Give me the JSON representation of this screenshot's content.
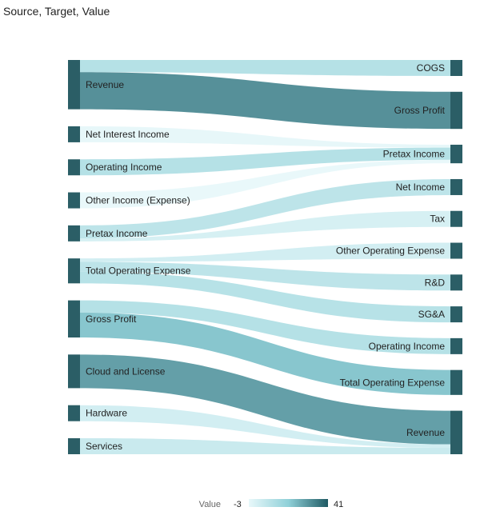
{
  "title": "Source, Target, Value",
  "chart_data": {
    "type": "sankey",
    "title": "Source, Target, Value",
    "color_legend": {
      "label": "Value",
      "min": -3,
      "max": 41,
      "min_color": "#e8f8fa",
      "max_color": "#1f5a63"
    },
    "node_color": "#2b5e66",
    "sources": [
      {
        "id": "s_revenue",
        "label": "Revenue"
      },
      {
        "id": "s_nii",
        "label": "Net Interest Income"
      },
      {
        "id": "s_opinc",
        "label": "Operating Income"
      },
      {
        "id": "s_otherinc",
        "label": "Other Income (Expense)"
      },
      {
        "id": "s_pretax",
        "label": "Pretax Income"
      },
      {
        "id": "s_toe",
        "label": "Total Operating Expense"
      },
      {
        "id": "s_gp",
        "label": "Gross Profit"
      },
      {
        "id": "s_cloud",
        "label": "Cloud and License"
      },
      {
        "id": "s_hw",
        "label": "Hardware"
      },
      {
        "id": "s_svc",
        "label": "Services"
      }
    ],
    "targets": [
      {
        "id": "t_cogs",
        "label": "COGS"
      },
      {
        "id": "t_gp",
        "label": "Gross Profit"
      },
      {
        "id": "t_pretax",
        "label": "Pretax Income"
      },
      {
        "id": "t_netinc",
        "label": "Net Income"
      },
      {
        "id": "t_tax",
        "label": "Tax"
      },
      {
        "id": "t_ooe",
        "label": "Other Operating Expense"
      },
      {
        "id": "t_rd",
        "label": "R&D"
      },
      {
        "id": "t_sga",
        "label": "SG&A"
      },
      {
        "id": "t_opinc",
        "label": "Operating Income"
      },
      {
        "id": "t_toe",
        "label": "Total Operating Expense"
      },
      {
        "id": "t_revenue",
        "label": "Revenue"
      }
    ],
    "links": [
      {
        "source": "s_revenue",
        "target": "t_cogs",
        "value": 10.5
      },
      {
        "source": "s_revenue",
        "target": "t_gp",
        "value": 32
      },
      {
        "source": "s_nii",
        "target": "t_pretax",
        "value": -2.5
      },
      {
        "source": "s_opinc",
        "target": "t_pretax",
        "value": 10.5
      },
      {
        "source": "s_otherinc",
        "target": "t_pretax",
        "value": -3
      },
      {
        "source": "s_pretax",
        "target": "t_netinc",
        "value": 8.5
      },
      {
        "source": "s_pretax",
        "target": "t_tax",
        "value": 2
      },
      {
        "source": "s_toe",
        "target": "t_ooe",
        "value": 3
      },
      {
        "source": "s_toe",
        "target": "t_rd",
        "value": 8.5
      },
      {
        "source": "s_toe",
        "target": "t_sga",
        "value": 10
      },
      {
        "source": "s_gp",
        "target": "t_opinc",
        "value": 10.5
      },
      {
        "source": "s_gp",
        "target": "t_toe",
        "value": 21.5
      },
      {
        "source": "s_cloud",
        "target": "t_revenue",
        "value": 29
      },
      {
        "source": "s_hw",
        "target": "t_revenue",
        "value": 3
      },
      {
        "source": "s_svc",
        "target": "t_revenue",
        "value": 5.5
      }
    ]
  }
}
